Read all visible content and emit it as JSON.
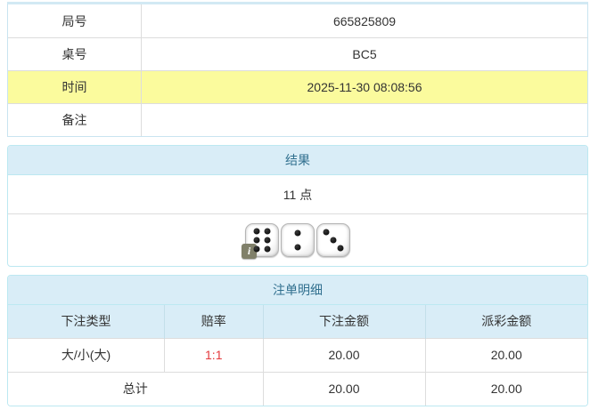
{
  "info_table": {
    "rows": [
      {
        "label": "局号",
        "value": "665825809",
        "highlight": false
      },
      {
        "label": "桌号",
        "value": "BC5",
        "highlight": false
      },
      {
        "label": "时间",
        "value": "2025-11-30 08:08:56",
        "highlight": true
      },
      {
        "label": "备注",
        "value": "",
        "highlight": false
      }
    ]
  },
  "result_panel": {
    "title": "结果",
    "points": "11 点",
    "dice": [
      6,
      2,
      3
    ],
    "info_icon": "i"
  },
  "bets_panel": {
    "title": "注单明细",
    "columns": [
      "下注类型",
      "赔率",
      "下注金额",
      "派彩金额"
    ],
    "rows": [
      {
        "type": "大/小(大)",
        "odds": "1:1",
        "bet": "20.00",
        "payout": "20.00"
      }
    ],
    "total": {
      "label": "总计",
      "bet": "20.00",
      "payout": "20.00"
    }
  },
  "colors": {
    "highlight_row": "#fbfb9d",
    "panel_border": "#bce8f1",
    "panel_heading_bg": "#d9edf7",
    "panel_heading_text": "#31708f",
    "odds_text": "#e4393c"
  }
}
